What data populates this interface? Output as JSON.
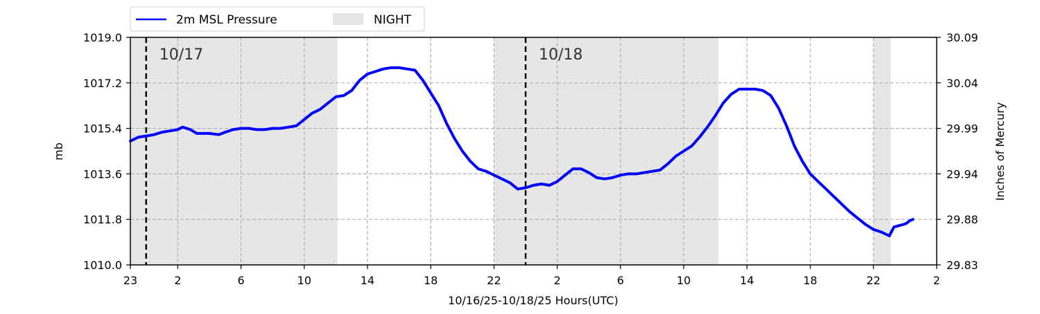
{
  "chart_data": {
    "type": "line",
    "title": "",
    "xlabel": "10/16/25-10/18/25  Hours(UTC)",
    "ylabel": "mb",
    "ylabel_right": "Inches of Mercury",
    "x_unit": "hours since 10/16 23:00 UTC",
    "xlim": [
      0,
      51
    ],
    "ylim": [
      1010.0,
      1019.0
    ],
    "ylim_right": [
      29.83,
      30.09
    ],
    "x_ticks": [
      {
        "x": 0,
        "label": "23"
      },
      {
        "x": 3,
        "label": "2"
      },
      {
        "x": 7,
        "label": "6"
      },
      {
        "x": 11,
        "label": "10"
      },
      {
        "x": 15,
        "label": "14"
      },
      {
        "x": 19,
        "label": "18"
      },
      {
        "x": 23,
        "label": "22"
      },
      {
        "x": 27,
        "label": "2"
      },
      {
        "x": 31,
        "label": "6"
      },
      {
        "x": 35,
        "label": "10"
      },
      {
        "x": 39,
        "label": "14"
      },
      {
        "x": 43,
        "label": "18"
      },
      {
        "x": 47,
        "label": "22"
      },
      {
        "x": 51,
        "label": "2"
      }
    ],
    "y_ticks": [
      "1010.0",
      "1011.8",
      "1013.6",
      "1015.4",
      "1017.2",
      "1019.0"
    ],
    "y_ticks_right": [
      "29.83",
      "29.88",
      "29.94",
      "29.99",
      "30.04",
      "30.09"
    ],
    "grid": true,
    "legend_placement": "top-left, above plot",
    "night_bands": [
      [
        0,
        13.1
      ],
      [
        23.0,
        37.2
      ],
      [
        47.0,
        48.1
      ]
    ],
    "day_markers": [
      {
        "x": 1.0,
        "label": "10/17"
      },
      {
        "x": 25.0,
        "label": "10/18"
      }
    ],
    "series": [
      {
        "name": "2m MSL Pressure",
        "color": "#0000ff",
        "x": [
          0,
          0.5,
          1,
          1.5,
          2,
          3,
          3.3,
          3.8,
          4.2,
          5,
          5.6,
          6,
          6.5,
          7,
          7.5,
          8,
          8.5,
          9,
          9.5,
          10,
          10.5,
          11,
          11.5,
          12,
          12.5,
          13,
          13.5,
          14,
          14.5,
          15,
          15.5,
          16,
          16.5,
          17,
          17.5,
          18,
          18.5,
          19,
          19.5,
          20,
          20.5,
          21,
          21.5,
          22,
          22.5,
          23,
          23.5,
          24,
          24.5,
          25,
          25.5,
          26,
          26.5,
          27,
          27.5,
          28,
          28.5,
          29,
          29.5,
          30,
          30.5,
          31,
          31.5,
          32,
          32.5,
          33,
          33.5,
          34,
          34.5,
          35,
          35.5,
          36,
          36.5,
          37,
          37.5,
          38,
          38.5,
          39,
          39.5,
          40,
          40.5,
          41,
          41.5,
          42,
          42.5,
          43,
          43.5,
          44,
          44.5,
          45,
          45.5,
          46,
          46.5,
          47,
          47.5,
          48,
          48.3,
          48.6,
          48.9,
          49.1,
          49.3,
          49.5
        ],
        "values": [
          1014.9,
          1015.05,
          1015.1,
          1015.15,
          1015.25,
          1015.35,
          1015.45,
          1015.35,
          1015.2,
          1015.2,
          1015.15,
          1015.25,
          1015.35,
          1015.4,
          1015.4,
          1015.35,
          1015.35,
          1015.4,
          1015.4,
          1015.45,
          1015.5,
          1015.75,
          1016.0,
          1016.15,
          1016.4,
          1016.65,
          1016.7,
          1016.9,
          1017.3,
          1017.55,
          1017.65,
          1017.75,
          1017.8,
          1017.8,
          1017.75,
          1017.7,
          1017.3,
          1016.8,
          1016.3,
          1015.6,
          1015.0,
          1014.5,
          1014.1,
          1013.8,
          1013.7,
          1013.55,
          1013.4,
          1013.25,
          1013.0,
          1013.05,
          1013.15,
          1013.2,
          1013.15,
          1013.3,
          1013.55,
          1013.8,
          1013.8,
          1013.65,
          1013.45,
          1013.4,
          1013.45,
          1013.55,
          1013.6,
          1013.6,
          1013.65,
          1013.7,
          1013.75,
          1014.0,
          1014.3,
          1014.5,
          1014.7,
          1015.05,
          1015.45,
          1015.9,
          1016.4,
          1016.75,
          1016.95,
          1016.95,
          1016.95,
          1016.9,
          1016.7,
          1016.2,
          1015.5,
          1014.7,
          1014.1,
          1013.6,
          1013.3,
          1013.0,
          1012.7,
          1012.4,
          1012.1,
          1011.85,
          1011.6,
          1011.4,
          1011.3,
          1011.15,
          1011.5,
          1011.55,
          1011.6,
          1011.65,
          1011.75,
          1011.8
        ]
      }
    ]
  },
  "legend": {
    "line_label": "2m MSL Pressure",
    "band_label": "NIGHT"
  },
  "colors": {
    "series": "#0000ff",
    "night": "#e6e6e6",
    "grid": "#b0b0b0"
  }
}
